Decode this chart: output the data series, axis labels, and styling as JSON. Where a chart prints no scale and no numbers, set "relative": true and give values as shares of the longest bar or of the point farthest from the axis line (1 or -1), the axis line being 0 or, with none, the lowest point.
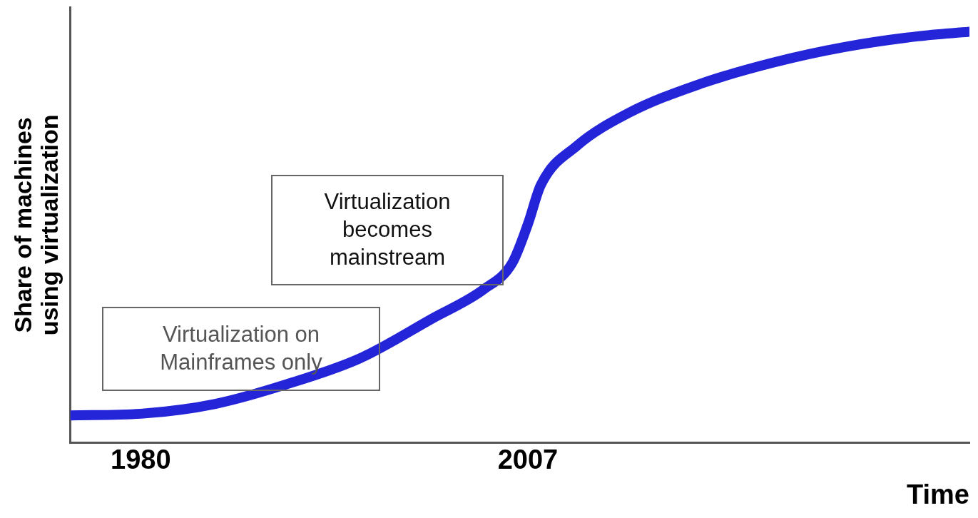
{
  "chart_data": {
    "type": "line",
    "relative": true,
    "xlabel": "Time",
    "ylabel": "Share of machines using virtualization",
    "x": [
      1975.1,
      1980,
      1985.2,
      1990.2,
      1995.3,
      2000.3,
      2003.9,
      2005.9,
      2007,
      2007.9,
      2010.4,
      2014.0,
      2019.0,
      2024.1,
      2029.1,
      2034.2,
      2037.8
    ],
    "series": [
      {
        "color": "#2424d8",
        "values": [
          0.067,
          0.071,
          0.095,
          0.143,
          0.206,
          0.302,
          0.373,
          0.437,
          0.532,
          0.627,
          0.722,
          0.802,
          0.873,
          0.925,
          0.963,
          0.989,
          1
        ]
      }
    ],
    "xlim": [
      1975.1,
      2037.8
    ],
    "xticks": [
      1980,
      2007
    ],
    "grid": false,
    "legend": false,
    "marker": "none",
    "line_style": "solid",
    "annotations": [
      "Virtualization on Mainframes only",
      "Virtualization becomes mainstream"
    ]
  }
}
